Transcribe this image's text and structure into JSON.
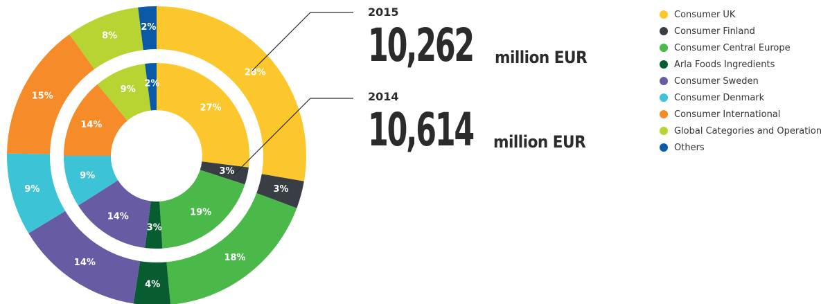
{
  "chart_data": {
    "type": "pie",
    "variant": "nested-donut",
    "categories": [
      "Consumer UK",
      "Consumer Finland",
      "Consumer Central Europe",
      "Arla Foods Ingredients",
      "Consumer Sweden",
      "Consumer Denmark",
      "Consumer International",
      "Global Categories and Operations",
      "Others"
    ],
    "colors": [
      "#fcc72c",
      "#393e44",
      "#4bb949",
      "#075c30",
      "#675ba4",
      "#3cc3d5",
      "#f68b2a",
      "#b8d432",
      "#0a5aa8"
    ],
    "series": [
      {
        "name": "2015",
        "ring": "outer",
        "values": [
          28,
          3,
          18,
          4,
          14,
          9,
          15,
          8,
          2
        ],
        "labels": [
          "28%",
          "3%",
          "18%",
          "4%",
          "14%",
          "9%",
          "15%",
          "8%",
          "2%"
        ]
      },
      {
        "name": "2014",
        "ring": "inner",
        "values": [
          27,
          3,
          19,
          3,
          14,
          9,
          14,
          9,
          2
        ],
        "labels": [
          "27%",
          "3%",
          "19%",
          "3%",
          "14%",
          "9%",
          "14%",
          "9%",
          "2%"
        ]
      }
    ],
    "legend_position": "top-right"
  },
  "callouts": [
    {
      "year": "2015",
      "value": "10,262",
      "unit": "million EUR"
    },
    {
      "year": "2014",
      "value": "10,614",
      "unit": "million EUR"
    }
  ]
}
